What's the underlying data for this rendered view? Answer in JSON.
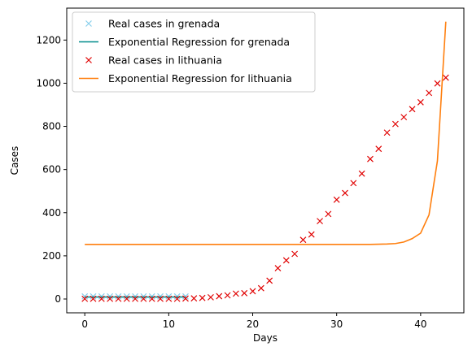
{
  "chart_data": {
    "type": "line",
    "title": "",
    "xlabel": "Days",
    "ylabel": "Cases",
    "xlim": [
      -2.15,
      45.15
    ],
    "ylim": [
      -64,
      1348
    ],
    "xticks": [
      0,
      10,
      20,
      30,
      40
    ],
    "yticks": [
      0,
      200,
      400,
      600,
      800,
      1000,
      1200
    ],
    "grid": false,
    "legend_position": "top-left",
    "series": [
      {
        "name": "Real cases in grenada",
        "kind": "marker",
        "marker": "x",
        "color": "#87ceeb",
        "x": [
          0,
          1,
          2,
          3,
          4,
          5,
          6,
          7,
          8,
          9,
          10,
          11,
          12
        ],
        "y": [
          12,
          12,
          12,
          12,
          12,
          12,
          12,
          12,
          12,
          12,
          12,
          12,
          12
        ]
      },
      {
        "name": "Exponential Regression for grenada",
        "kind": "line",
        "color": "#008b8b",
        "x": [
          0,
          1,
          2,
          3,
          4,
          5,
          6,
          7,
          8,
          9,
          10,
          11,
          12
        ],
        "y": [
          9,
          9,
          9,
          9,
          9,
          9,
          9,
          9,
          9,
          9,
          9,
          9,
          9
        ]
      },
      {
        "name": "Real cases in lithuania",
        "kind": "marker",
        "marker": "x",
        "color": "#e00000",
        "x": [
          0,
          1,
          2,
          3,
          4,
          5,
          6,
          7,
          8,
          9,
          10,
          11,
          12,
          13,
          14,
          15,
          16,
          17,
          18,
          19,
          20,
          21,
          22,
          23,
          24,
          25,
          26,
          27,
          28,
          29,
          30,
          31,
          32,
          33,
          34,
          35,
          36,
          37,
          38,
          39,
          40,
          41,
          42,
          43
        ],
        "y": [
          1,
          1,
          1,
          1,
          1,
          1,
          1,
          1,
          1,
          1,
          1,
          1,
          2,
          3,
          5,
          8,
          13,
          17,
          25,
          27,
          36,
          50,
          85,
          143,
          179,
          209,
          274,
          299,
          361,
          394,
          460,
          491,
          537,
          581,
          649,
          696,
          771,
          811,
          843,
          880,
          912,
          955,
          999,
          1026
        ]
      },
      {
        "name": "Exponential Regression for lithuania",
        "kind": "line",
        "color": "#ff7f0e",
        "x": [
          0,
          1,
          2,
          3,
          4,
          5,
          6,
          7,
          8,
          9,
          10,
          11,
          12,
          13,
          14,
          15,
          16,
          17,
          18,
          19,
          20,
          21,
          22,
          23,
          24,
          25,
          26,
          27,
          28,
          29,
          30,
          31,
          32,
          33,
          34,
          35,
          36,
          37,
          38,
          39,
          40,
          41,
          42,
          43
        ],
        "y": [
          253,
          253,
          253,
          253,
          253,
          253,
          253,
          253,
          253,
          253,
          253,
          253,
          253,
          253,
          253,
          253,
          253,
          253,
          253,
          253,
          253,
          253,
          253,
          253,
          253,
          253,
          253,
          253,
          253,
          253,
          253,
          253,
          253,
          253,
          253,
          254,
          255,
          257,
          264,
          280,
          305,
          390,
          640,
          1285
        ]
      }
    ]
  }
}
